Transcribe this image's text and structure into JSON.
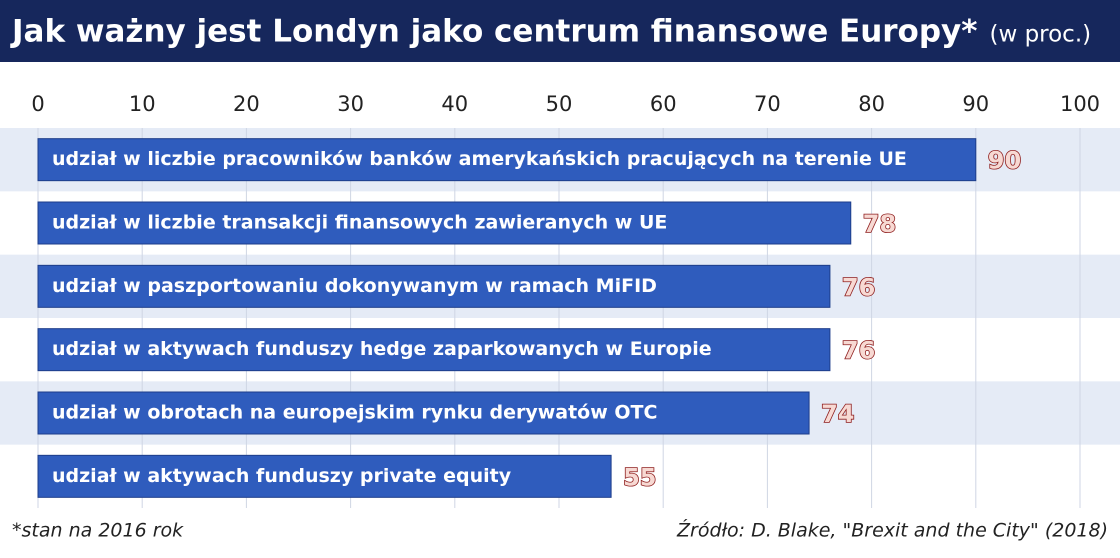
{
  "chart_data": {
    "type": "hbar",
    "title": "Jak ważny jest Londyn jako centrum finansowe Europy*",
    "subtitle": "(w proc.)",
    "categories": [
      "udział w liczbie pracowników banków amerykańskich pracujących na terenie UE",
      "udział w liczbie transakcji finansowych zawieranych w UE",
      "udział w paszportowaniu dokonywanym w ramach MiFID",
      "udział w aktywach funduszy hedge zaparkowanych w Europie",
      "udział w obrotach na europejskim rynku derywatów OTC",
      "udział w aktywach funduszy private equity"
    ],
    "values": [
      90,
      78,
      76,
      76,
      74,
      55
    ],
    "color": "#2f5cbd",
    "xlim": [
      0,
      100
    ],
    "xticks": [
      0,
      10,
      20,
      30,
      40,
      50,
      60,
      70,
      80,
      90,
      100
    ],
    "grid": true,
    "footnote": "*stan na 2016 rok",
    "source": "Źródło: D. Blake, \"Brexit and the City\" (2018)"
  }
}
